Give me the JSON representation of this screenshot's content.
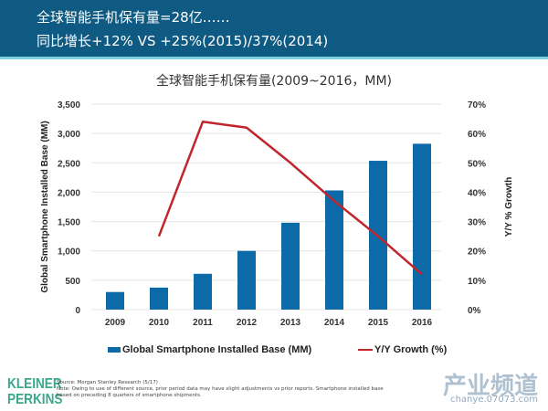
{
  "header": {
    "line1": "全球智能手机保有量=28亿……",
    "line2": "同比增长+12% VS +25%(2015)/37%(2014)"
  },
  "chart_data": {
    "type": "bar+line",
    "title": "全球智能手机保有量(2009~2016，MM)",
    "categories": [
      "2009",
      "2010",
      "2011",
      "2012",
      "2013",
      "2014",
      "2015",
      "2016"
    ],
    "series": [
      {
        "name": "Global Smartphone Installed Base (MM)",
        "type": "bar",
        "axis": "left",
        "color": "#0d6aa8",
        "values": [
          300,
          375,
          610,
          1000,
          1480,
          2030,
          2535,
          2825
        ]
      },
      {
        "name": "Y/Y Growth (%)",
        "type": "line",
        "axis": "right",
        "color": "#c0262c",
        "values": [
          null,
          25,
          64,
          62,
          50,
          37,
          25,
          12
        ]
      }
    ],
    "ylabel": "Global Smartphone Installed Base (MM)",
    "ylabel_right": "Y/Y % Growth",
    "ylim": [
      0,
      3500
    ],
    "yticks": [
      "0",
      "500",
      "1,000",
      "1,500",
      "2,000",
      "2,500",
      "3,000",
      "3,500"
    ],
    "ylim_right": [
      0,
      70
    ],
    "yticks_right": [
      "0%",
      "10%",
      "20%",
      "30%",
      "40%",
      "50%",
      "60%",
      "70%"
    ],
    "grid": true,
    "legend": "bottom"
  },
  "footer": {
    "logo": "KLEINER PERKINS",
    "logo_line1": "KLEINER",
    "logo_line2": "PERKINS",
    "source": "Source: Morgan Stanley Research (5/17)",
    "note": "Note: Owing to use of different source, prior period data may have slight adjustments vs prior reports. Smartphone installed base based on preceding 8 quarters of smartphone shipments.",
    "watermark": "产业频道 chanye.07073.com",
    "watermark_big": "产业频道",
    "watermark_url": "chanye.07073.com"
  }
}
